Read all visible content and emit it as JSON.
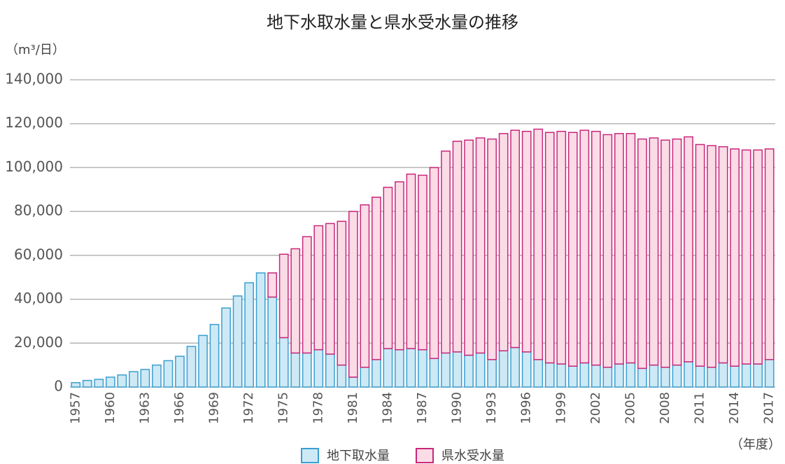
{
  "chart_data": {
    "type": "stacked_bar",
    "title": "地下水取水量と県水受水量の推移",
    "y_unit": "（m³/日）",
    "x_unit": "（年度）",
    "categories": [
      "1957",
      null,
      null,
      "1960",
      null,
      null,
      "1963",
      null,
      null,
      "1966",
      null,
      null,
      "1969",
      null,
      null,
      "1972",
      null,
      null,
      "1975",
      null,
      null,
      "1978",
      null,
      null,
      "1981",
      null,
      null,
      "1984",
      null,
      null,
      "1987",
      null,
      null,
      "1990",
      null,
      null,
      "1993",
      null,
      null,
      "1996",
      null,
      null,
      "1999",
      null,
      null,
      "2002",
      null,
      null,
      "2005",
      null,
      null,
      "2008",
      null,
      null,
      "2011",
      null,
      null,
      "2014",
      null,
      null,
      "2017"
    ],
    "series": [
      {
        "name": "地下取水量",
        "color": "#cde9f5",
        "edgecolor": "#3a9fd0",
        "values": [
          2000,
          3000,
          3500,
          4500,
          5500,
          7000,
          8000,
          10000,
          12000,
          14000,
          18500,
          23500,
          28500,
          36000,
          41500,
          47500,
          52000,
          41000,
          22500,
          15500,
          15500,
          17000,
          15000,
          10000,
          4500,
          9000,
          12500,
          17500,
          17000,
          17500,
          17000,
          13000,
          15500,
          16000,
          14500,
          15500,
          12500,
          16500,
          18000,
          16000,
          12500,
          11000,
          10500,
          9500,
          11000,
          10000,
          9000,
          10500,
          11000,
          8500,
          10000,
          9000,
          10000,
          11500,
          9500,
          9000,
          11000,
          9500,
          10500,
          10500,
          12500
        ]
      },
      {
        "name": "県水受水量",
        "color": "#fadbe6",
        "edgecolor": "#c8287a",
        "values": [
          null,
          null,
          null,
          null,
          null,
          null,
          null,
          null,
          null,
          null,
          null,
          null,
          null,
          null,
          null,
          null,
          null,
          11000,
          38000,
          47500,
          53000,
          56500,
          59500,
          65500,
          75500,
          74000,
          74000,
          73500,
          76500,
          79500,
          79500,
          87000,
          92000,
          96000,
          98000,
          98000,
          100500,
          99000,
          99000,
          100500,
          105000,
          105000,
          106000,
          106500,
          106000,
          106500,
          106000,
          105000,
          104500,
          104500,
          103500,
          103500,
          103000,
          102500,
          101000,
          101000,
          98500,
          99000,
          97500,
          97500,
          96000
        ]
      }
    ],
    "ylim": [
      0,
      140000
    ],
    "yticks": [
      0,
      {
        "value": 20000,
        "label": "20,000"
      },
      {
        "value": 40000,
        "label": "40,000"
      },
      {
        "value": 60000,
        "label": "60,000"
      },
      {
        "value": 80000,
        "label": "80,000"
      },
      {
        "value": 100000,
        "label": "100,000"
      },
      {
        "value": 120000,
        "label": "120,000"
      },
      {
        "value": 140000,
        "label": "140,000"
      }
    ],
    "grid": true,
    "legend": "bottom"
  }
}
